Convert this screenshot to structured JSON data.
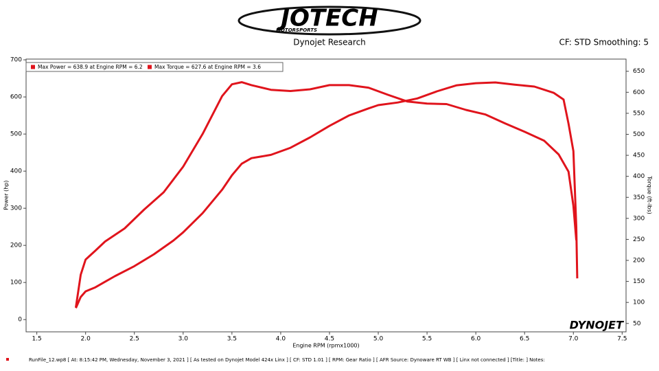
{
  "header": {
    "logo": "JOTECH",
    "logo_sub": "MOTORSPORTS",
    "title": "Dynojet Research",
    "settings": "CF: STD Smoothing: 5"
  },
  "chart_data": {
    "type": "line",
    "xlabel": "Engine RPM (rpmx1000)",
    "ylabel": "Power (hp)",
    "y2label": "Torque (ft-lbs)",
    "xlim": [
      1.39,
      7.54
    ],
    "ylim": [
      -33,
      702
    ],
    "y2lim": [
      30,
      679
    ],
    "xticks": [
      1.5,
      {
        "value": 2,
        "label": "2.0"
      },
      2.5,
      {
        "value": 3,
        "label": "3.0"
      },
      3.5,
      {
        "value": 4,
        "label": "4.0"
      },
      4.5,
      {
        "value": 5,
        "label": "5.0"
      },
      5.5,
      {
        "value": 6,
        "label": "6.0"
      },
      6.5,
      {
        "value": 7,
        "label": "7.0"
      },
      7.5
    ],
    "yticks": [
      0,
      100,
      200,
      300,
      400,
      500,
      600,
      700
    ],
    "y2ticks": [
      50,
      100,
      150,
      200,
      250,
      300,
      350,
      400,
      450,
      500,
      550,
      600,
      650
    ],
    "series": [
      {
        "name": "Max Power = 638.9 at Engine RPM = 6.2",
        "color": "#e0141c",
        "x": [
          1.9,
          1.95,
          2.0,
          2.1,
          2.2,
          2.3,
          2.5,
          2.7,
          2.9,
          3.0,
          3.2,
          3.4,
          3.5,
          3.6,
          3.7,
          3.9,
          4.1,
          4.3,
          4.5,
          4.7,
          4.9,
          5.0,
          5.2,
          5.4,
          5.6,
          5.8,
          6.0,
          6.2,
          6.4,
          6.6,
          6.8,
          6.9,
          6.95,
          7.0,
          7.03,
          7.04
        ],
        "values": [
          31,
          61,
          76,
          87,
          102,
          117,
          144,
          176,
          213,
          235,
          287,
          350,
          389,
          420,
          435,
          444,
          463,
          491,
          522,
          550,
          569,
          578,
          585,
          596,
          615,
          631,
          637,
          639,
          633,
          628,
          611,
          593,
          528,
          454,
          250,
          111
        ]
      },
      {
        "name": "Max Torque = 627.6 at Engine RPM = 3.6",
        "color": "#e0141c",
        "axis": "y2",
        "x": [
          1.9,
          1.95,
          2.0,
          2.1,
          2.2,
          2.4,
          2.6,
          2.8,
          3.0,
          3.2,
          3.4,
          3.5,
          3.6,
          3.7,
          3.9,
          4.1,
          4.3,
          4.5,
          4.7,
          4.9,
          5.1,
          5.3,
          5.5,
          5.7,
          5.9,
          6.1,
          6.3,
          6.5,
          6.7,
          6.85,
          6.95,
          7.0,
          7.03
        ],
        "values": [
          88,
          166,
          202,
          223,
          245,
          276,
          321,
          362,
          423,
          501,
          591,
          619,
          624,
          617,
          606,
          603,
          607,
          617,
          617,
          611,
          594,
          578,
          573,
          572,
          558,
          547,
          526,
          506,
          485,
          452,
          411,
          330,
          248
        ]
      }
    ]
  },
  "brand": "DYNOJET",
  "footer": "RunFile_12.wp8 [ At: 8:15:42 PM, Wednesday, November 3, 2021 ] [ As tested on Dynojet Model 424x Linx ] [ CF: STD 1.01 ] [ RPM: Gear Ratio ] [ AFR Source: Dynoware RT WB ] [ Linx not connected ] [Title: ]  Notes:"
}
